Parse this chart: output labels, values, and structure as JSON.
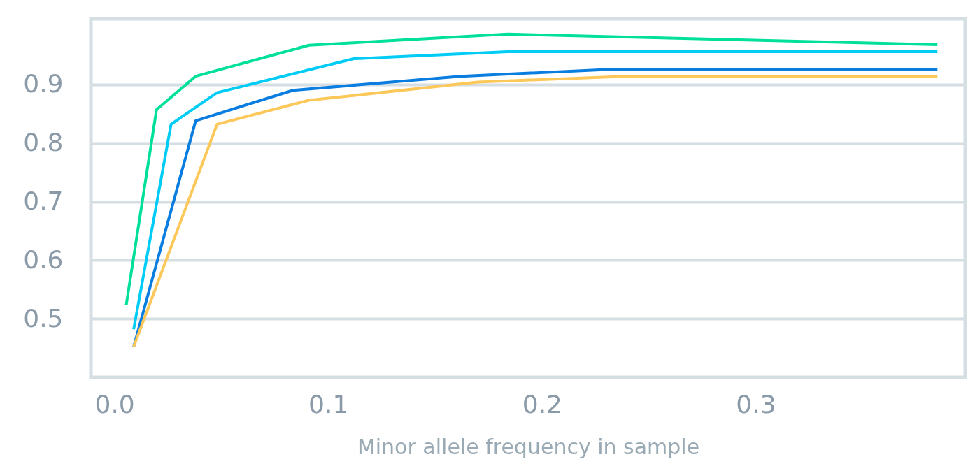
{
  "chart_data": {
    "type": "line",
    "xlabel": "Minor allele frequency in sample",
    "xlim": [
      -0.011,
      0.398
    ],
    "xticks": [
      {
        "value": 0,
        "label": "0.0"
      },
      0.1,
      0.2,
      0.3
    ],
    "ylim": [
      0.4,
      1.012
    ],
    "yticks": [
      0.5,
      0.6,
      0.7,
      0.8,
      0.9
    ],
    "grid": "y",
    "legend": false,
    "marker": "none",
    "line_style": "solid",
    "series": [
      {
        "color": "#00e09a",
        "x": [
          0.0055,
          0.0197,
          0.038,
          0.091,
          0.184,
          0.385
        ],
        "values": [
          0.523,
          0.857,
          0.914,
          0.967,
          0.986,
          0.968
        ]
      },
      {
        "color": "#00ccf5",
        "x": [
          0.009,
          0.0265,
          0.048,
          0.112,
          0.184,
          0.385
        ],
        "values": [
          0.482,
          0.832,
          0.886,
          0.944,
          0.956,
          0.956
        ]
      },
      {
        "color": "#0a7de0",
        "x": [
          0.009,
          0.038,
          0.0835,
          0.162,
          0.234,
          0.385
        ],
        "values": [
          0.452,
          0.838,
          0.89,
          0.914,
          0.926,
          0.926
        ]
      },
      {
        "color": "#fcc85a",
        "x": [
          0.009,
          0.048,
          0.091,
          0.17,
          0.239,
          0.385
        ],
        "values": [
          0.452,
          0.832,
          0.873,
          0.904,
          0.914,
          0.914
        ]
      }
    ]
  }
}
